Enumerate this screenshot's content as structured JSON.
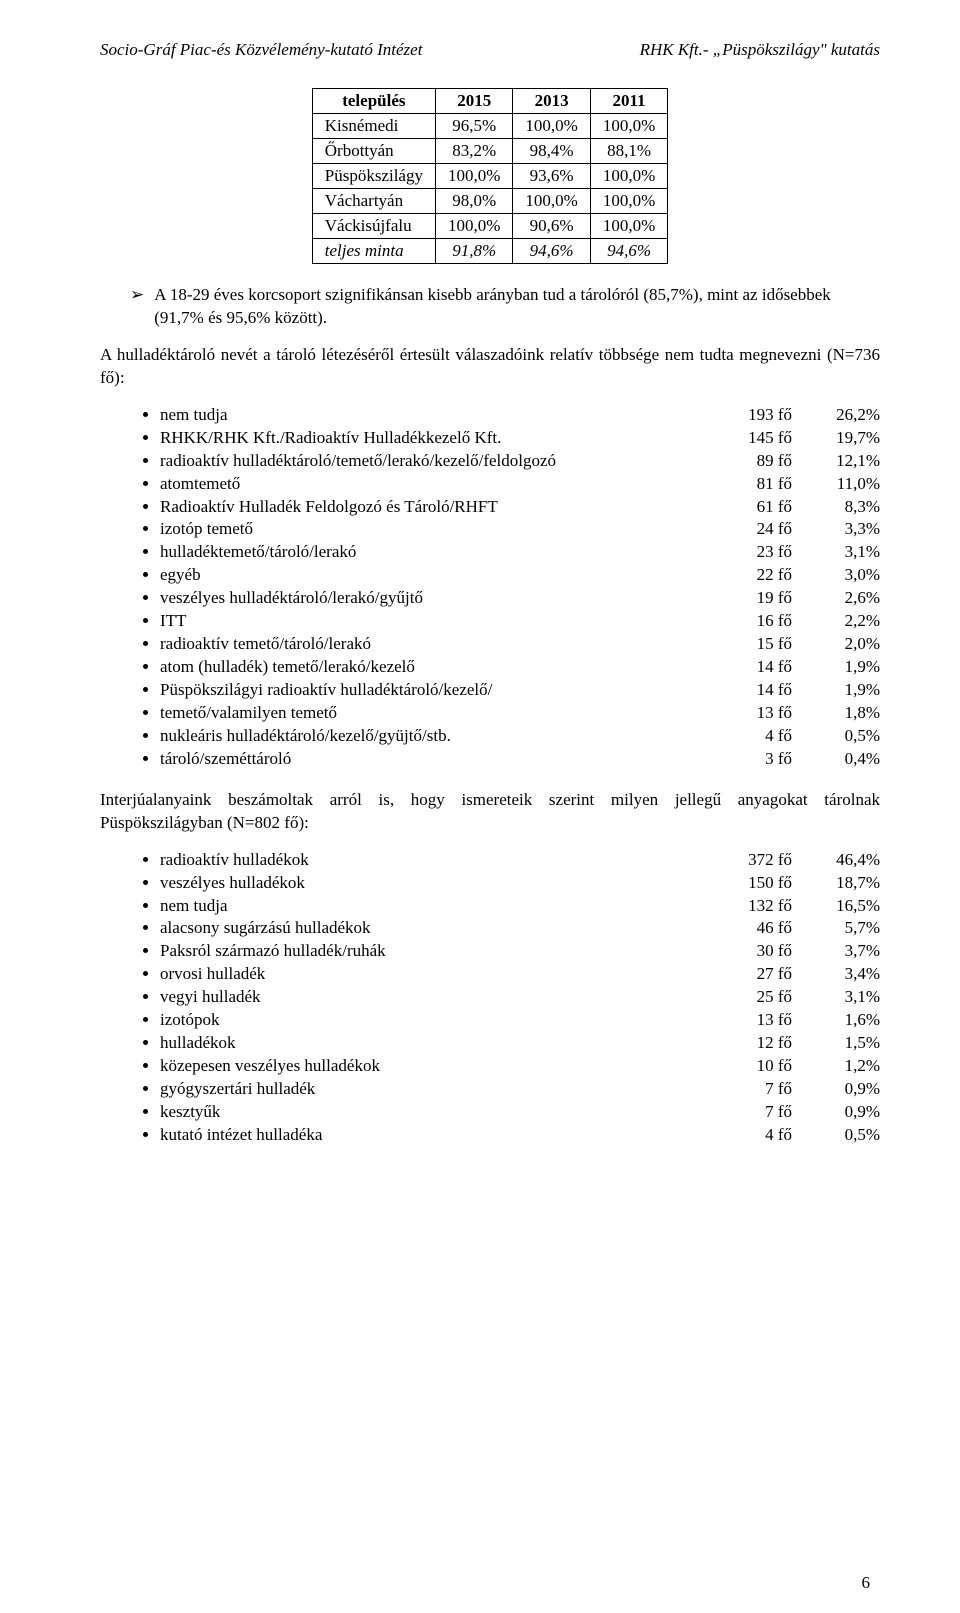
{
  "header": {
    "left": "Socio-Gráf Piac-és Közvélemény-kutató Intézet",
    "right": "RHK Kft.- „Püspökszilágy\" kutatás"
  },
  "table": {
    "headers": [
      "település",
      "2015",
      "2013",
      "2011"
    ],
    "rows": [
      {
        "label": "Kisnémedi",
        "v1": "96,5%",
        "v2": "100,0%",
        "v3": "100,0%"
      },
      {
        "label": "Őrbottyán",
        "v1": "83,2%",
        "v2": "98,4%",
        "v3": "88,1%"
      },
      {
        "label": "Püspökszilágy",
        "v1": "100,0%",
        "v2": "93,6%",
        "v3": "100,0%"
      },
      {
        "label": "Váchartyán",
        "v1": "98,0%",
        "v2": "100,0%",
        "v3": "100,0%"
      },
      {
        "label": "Váckisújfalu",
        "v1": "100,0%",
        "v2": "90,6%",
        "v3": "100,0%"
      }
    ],
    "total": {
      "label": "teljes minta",
      "v1": "91,8%",
      "v2": "94,6%",
      "v3": "94,6%"
    }
  },
  "arrow_para": "A 18-29 éves korcsoport szignifikánsan kisebb arányban tud a tárolóról (85,7%), mint az idősebbek (91,7% és 95,6% között).",
  "para1": "A hulladéktároló nevét a tároló létezéséről értesült válaszadóink relatív többsége nem tudta megnevezni (N=736 fő):",
  "list1": [
    {
      "label": "nem tudja",
      "count": "193 fő",
      "pct": "26,2%"
    },
    {
      "label": "RHKK/RHK Kft./Radioaktív Hulladékkezelő Kft.",
      "count": "145 fő",
      "pct": "19,7%"
    },
    {
      "label": "radioaktív hulladéktároló/temető/lerakó/kezelő/feldolgozó",
      "count": "89 fő",
      "pct": "12,1%"
    },
    {
      "label": "atomtemető",
      "count": "81 fő",
      "pct": "11,0%"
    },
    {
      "label": "Radioaktív Hulladék Feldolgozó és Tároló/RHFT",
      "count": "61 fő",
      "pct": "8,3%"
    },
    {
      "label": "izotóp temető",
      "count": "24 fő",
      "pct": "3,3%"
    },
    {
      "label": "hulladéktemető/tároló/lerakó",
      "count": "23 fő",
      "pct": "3,1%"
    },
    {
      "label": "egyéb",
      "count": "22 fő",
      "pct": "3,0%"
    },
    {
      "label": "veszélyes hulladéktároló/lerakó/gyűjtő",
      "count": "19 fő",
      "pct": "2,6%"
    },
    {
      "label": "ITT",
      "count": "16 fő",
      "pct": "2,2%"
    },
    {
      "label": "radioaktív temető/tároló/lerakó",
      "count": "15 fő",
      "pct": "2,0%"
    },
    {
      "label": "atom (hulladék) temető/lerakó/kezelő",
      "count": "14 fő",
      "pct": "1,9%"
    },
    {
      "label": "Püspökszilágyi radioaktív hulladéktároló/kezelő/",
      "count": "14 fő",
      "pct": "1,9%"
    },
    {
      "label": "temető/valamilyen temető",
      "count": "13 fő",
      "pct": "1,8%"
    },
    {
      "label": "nukleáris hulladéktároló/kezelő/gyüjtő/stb.",
      "count": "4 fő",
      "pct": "0,5%"
    },
    {
      "label": "tároló/szeméttároló",
      "count": "3 fő",
      "pct": "0,4%"
    }
  ],
  "para2": "Interjúalanyaink beszámoltak arról is, hogy ismereteik szerint milyen jellegű anyagokat tárolnak Püspökszilágyban (N=802 fő):",
  "list2": [
    {
      "label": "radioaktív hulladékok",
      "count": "372 fő",
      "pct": "46,4%"
    },
    {
      "label": "veszélyes hulladékok",
      "count": "150 fő",
      "pct": "18,7%"
    },
    {
      "label": "nem tudja",
      "count": "132 fő",
      "pct": "16,5%"
    },
    {
      "label": "alacsony sugárzású hulladékok",
      "count": "46 fő",
      "pct": "5,7%"
    },
    {
      "label": "Paksról származó hulladék/ruhák",
      "count": "30 fő",
      "pct": "3,7%"
    },
    {
      "label": "orvosi hulladék",
      "count": "27 fő",
      "pct": "3,4%"
    },
    {
      "label": "vegyi hulladék",
      "count": "25 fő",
      "pct": "3,1%"
    },
    {
      "label": "izotópok",
      "count": "13 fő",
      "pct": "1,6%"
    },
    {
      "label": "hulladékok",
      "count": "12 fő",
      "pct": "1,5%"
    },
    {
      "label": "közepesen veszélyes hulladékok",
      "count": "10 fő",
      "pct": "1,2%"
    },
    {
      "label": "gyógyszertári hulladék",
      "count": "7 fő",
      "pct": "0,9%"
    },
    {
      "label": "kesztyűk",
      "count": "7 fő",
      "pct": "0,9%"
    },
    {
      "label": "kutató intézet hulladéka",
      "count": "4 fő",
      "pct": "0,5%"
    }
  ],
  "pagenum": "6"
}
